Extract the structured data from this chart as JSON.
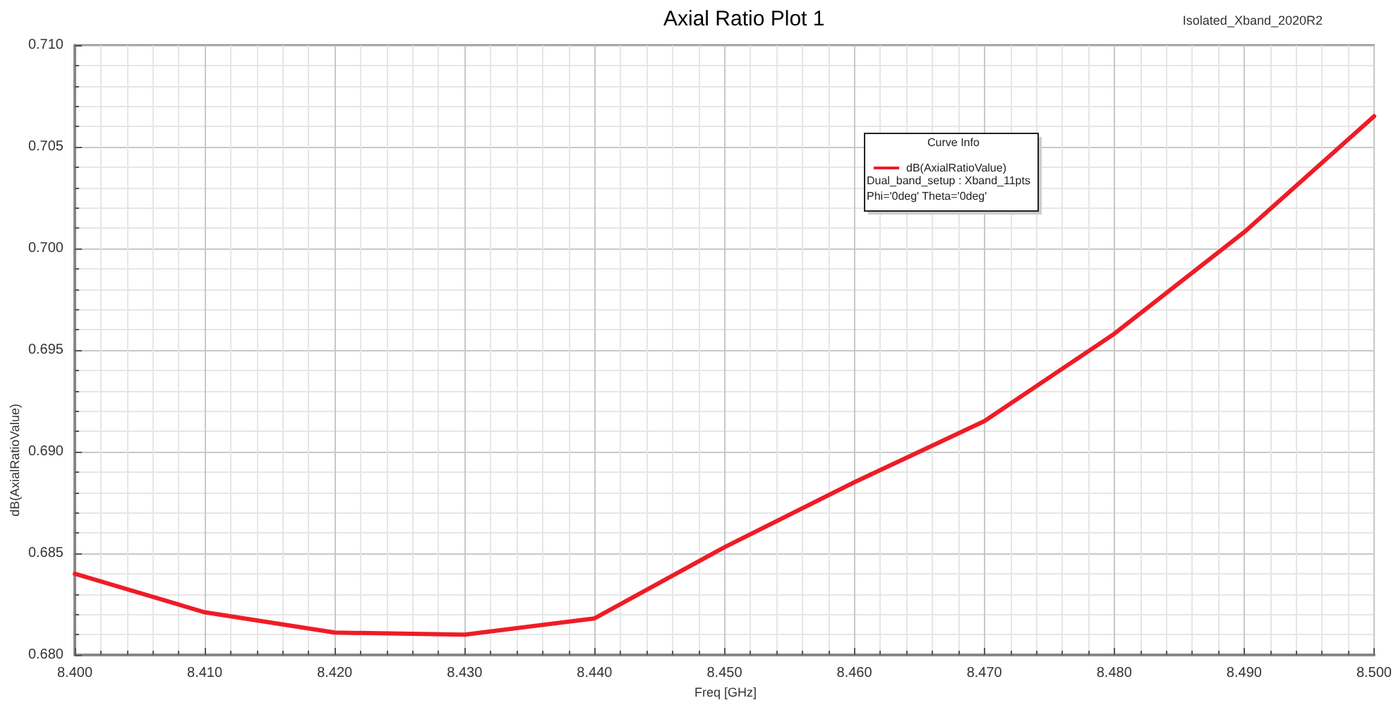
{
  "chart_data": {
    "type": "line",
    "title": "Axial Ratio Plot 1",
    "xlabel": "Freq [GHz]",
    "ylabel": "dB(AxialRatioValue)",
    "legend_title": "Curve Info",
    "annotations": [
      "Dual_band_setup : Xband_11pts",
      "Phi='0deg' Theta='0deg'",
      "Isolated_Xband_2020R2"
    ],
    "x": [
      8.4,
      8.41,
      8.42,
      8.43,
      8.44,
      8.45,
      8.46,
      8.47,
      8.48,
      8.49,
      8.5
    ],
    "series": [
      {
        "name": "dB(AxialRatioValue)",
        "color": "#ee1c25",
        "values": [
          0.684,
          0.6821,
          0.6811,
          0.681,
          0.6818,
          0.6853,
          0.6885,
          0.6915,
          0.6958,
          0.7008,
          0.7065
        ]
      }
    ],
    "xlim": [
      8.4,
      8.5
    ],
    "xticks": [
      {
        "value": 8.4,
        "label": "8.400"
      },
      {
        "value": 8.41,
        "label": "8.410"
      },
      {
        "value": 8.42,
        "label": "8.420"
      },
      {
        "value": 8.43,
        "label": "8.430"
      },
      {
        "value": 8.44,
        "label": "8.440"
      },
      {
        "value": 8.45,
        "label": "8.450"
      },
      {
        "value": 8.46,
        "label": "8.460"
      },
      {
        "value": 8.47,
        "label": "8.470"
      },
      {
        "value": 8.48,
        "label": "8.480"
      },
      {
        "value": 8.49,
        "label": "8.490"
      },
      {
        "value": 8.5,
        "label": "8.500"
      }
    ],
    "ylim": [
      0.68,
      0.71
    ],
    "yticks": [
      {
        "value": 0.68,
        "label": "0.680"
      },
      {
        "value": 0.685,
        "label": "0.685"
      },
      {
        "value": 0.69,
        "label": "0.690"
      },
      {
        "value": 0.695,
        "label": "0.695"
      },
      {
        "value": 0.7,
        "label": "0.700"
      },
      {
        "value": 0.705,
        "label": "0.705"
      },
      {
        "value": 0.71,
        "label": "0.710"
      }
    ],
    "grid": true,
    "legend": "top right",
    "marker": "none",
    "line_style": "solid"
  }
}
